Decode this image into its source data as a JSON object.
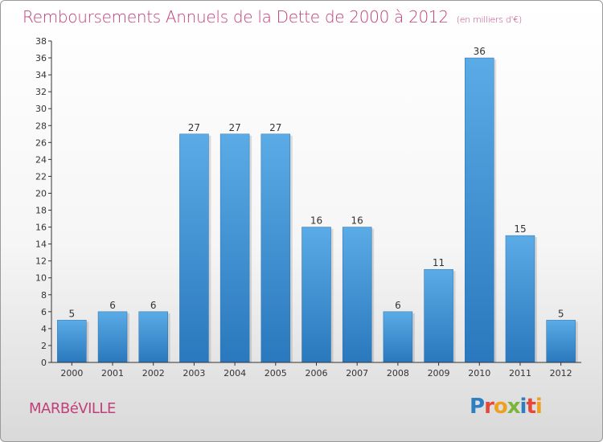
{
  "header": {
    "title": "Remboursements Annuels de la Dette de 2000 à 2012",
    "subtitle": "(en milliers d'€)"
  },
  "footer": {
    "commune": "MARBéVILLE",
    "logo": "Proxiti"
  },
  "colors": {
    "title": "#c0407a",
    "bar_top": "#5aabe6",
    "bar_bottom": "#2a78bd",
    "axis": "#333333",
    "grid": "#dddddd"
  },
  "chart_data": {
    "type": "bar",
    "title": "Remboursements Annuels de la Dette de 2000 à 2012",
    "subtitle": "(en milliers d'€)",
    "xlabel": "",
    "ylabel": "",
    "categories": [
      "2000",
      "2001",
      "2002",
      "2003",
      "2004",
      "2005",
      "2006",
      "2007",
      "2008",
      "2009",
      "2010",
      "2011",
      "2012"
    ],
    "values": [
      5,
      6,
      6,
      27,
      27,
      27,
      16,
      16,
      6,
      11,
      36,
      15,
      5
    ],
    "ylim": [
      0,
      38
    ],
    "yticks": [
      0,
      2,
      4,
      6,
      8,
      10,
      12,
      14,
      16,
      18,
      20,
      22,
      24,
      26,
      28,
      30,
      32,
      34,
      36,
      38
    ],
    "data_labels": true,
    "grid": false,
    "legend": "none"
  }
}
